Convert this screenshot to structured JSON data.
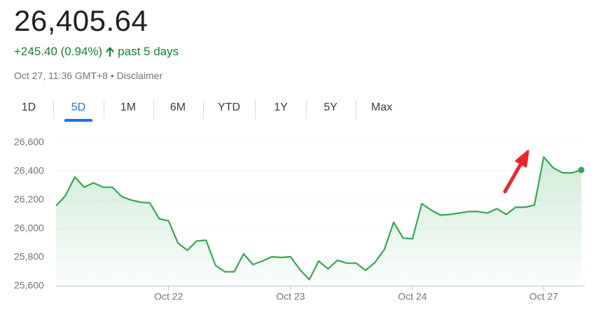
{
  "header": {
    "price": "26,405.64",
    "change": "+245.40 (0.94%)",
    "period": "past 5 days",
    "timestamp": "Oct 27, 11:36 GMT+8 •",
    "disclaimer": "Disclaimer"
  },
  "tabs": [
    "1D",
    "5D",
    "1M",
    "6M",
    "YTD",
    "1Y",
    "5Y",
    "Max"
  ],
  "selected_tab": 1,
  "chart_data": {
    "type": "line",
    "color": "#34a853",
    "categories": [
      null,
      null,
      null,
      null,
      null,
      null,
      null,
      null,
      null,
      null,
      null,
      null,
      "Oct 22",
      null,
      null,
      null,
      null,
      null,
      null,
      null,
      null,
      null,
      null,
      null,
      null,
      "Oct 23",
      null,
      null,
      null,
      null,
      null,
      null,
      null,
      null,
      null,
      null,
      null,
      null,
      "Oct 24",
      null,
      null,
      null,
      null,
      null,
      null,
      null,
      null,
      null,
      null,
      null,
      null,
      null,
      "Oct 27",
      null,
      null,
      null,
      null
    ],
    "values": [
      26160,
      26230,
      26360,
      26290,
      26320,
      26290,
      26290,
      26225,
      26200,
      26185,
      26180,
      26070,
      26055,
      25900,
      25850,
      25915,
      25920,
      25745,
      25700,
      25700,
      25825,
      25750,
      25775,
      25805,
      25800,
      25805,
      25715,
      25645,
      25775,
      25720,
      25780,
      25760,
      25760,
      25710,
      25765,
      25855,
      26045,
      25935,
      25930,
      26175,
      26130,
      26095,
      26100,
      26110,
      26120,
      26120,
      26110,
      26140,
      26100,
      26150,
      26150,
      26165,
      26500,
      26425,
      26390,
      26390,
      26410
    ],
    "ylim": [
      25600,
      26600
    ],
    "yticks": [
      {
        "value": 25600,
        "label": "25,600"
      },
      {
        "value": 25800,
        "label": "25,800"
      },
      {
        "value": 26000,
        "label": "26,000"
      },
      {
        "value": 26200,
        "label": "26,200"
      },
      {
        "value": 26400,
        "label": "26,400"
      },
      {
        "value": 26600,
        "label": "26,600"
      }
    ],
    "grid": true
  }
}
